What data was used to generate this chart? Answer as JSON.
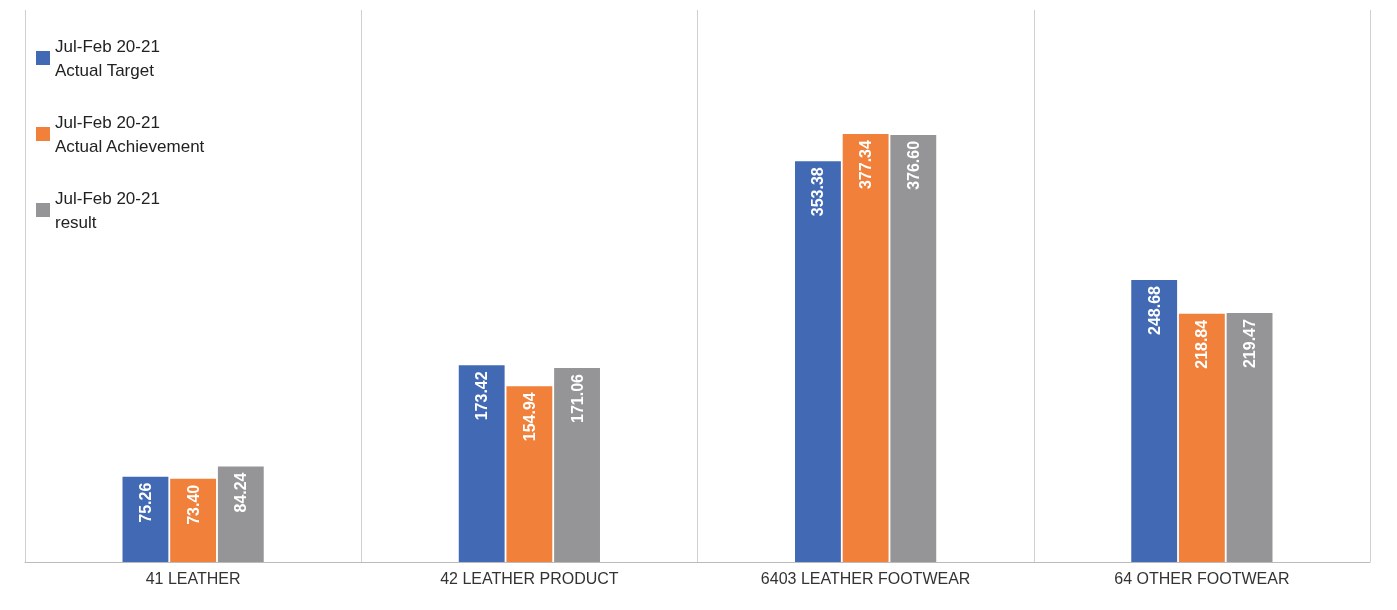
{
  "chart_data": {
    "type": "bar",
    "categories": [
      "41 LEATHER",
      "42 LEATHER PRODUCT",
      "6403 LEATHER FOOTWEAR",
      "64 OTHER FOOTWEAR"
    ],
    "series": [
      {
        "name": "Jul-Feb 20-21\nActual Target",
        "color": "#4169b4",
        "values": [
          75.26,
          173.42,
          353.38,
          248.68
        ],
        "value_labels": [
          "75.26",
          "173.42",
          "353.38",
          "248.68"
        ]
      },
      {
        "name": "Jul-Feb 20-21\nActual Achievement",
        "color": "#f0803a",
        "values": [
          73.4,
          154.94,
          377.34,
          218.84
        ],
        "value_labels": [
          "73.40",
          "154.94",
          "377.34",
          "218.84"
        ]
      },
      {
        "name": "Jul-Feb 20-21\nresult",
        "color": "#959597",
        "values": [
          84.24,
          171.06,
          376.6,
          219.47
        ],
        "value_labels": [
          "84.24",
          "171.06",
          "376.60",
          "219.47"
        ]
      }
    ],
    "grid": "x",
    "legend": "top left"
  }
}
